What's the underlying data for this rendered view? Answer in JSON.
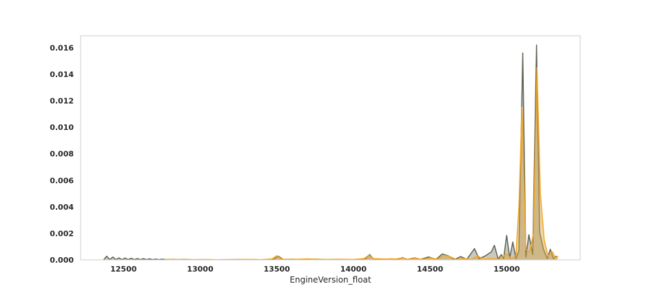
{
  "chart_data": {
    "type": "area",
    "title": "",
    "xlabel": "EngineVersion_float",
    "ylabel": "",
    "xlim": [
      12220,
      15480
    ],
    "ylim": [
      0,
      0.0169
    ],
    "x_ticks": [
      12500,
      13000,
      13500,
      14000,
      14500,
      15000
    ],
    "x_tick_labels": [
      "12500",
      "13000",
      "13500",
      "14000",
      "14500",
      "15000"
    ],
    "y_ticks": [
      0,
      0.002,
      0.004,
      0.006,
      0.008,
      0.01,
      0.012,
      0.014,
      0.016
    ],
    "y_tick_labels": [
      "0.000",
      "0.002",
      "0.004",
      "0.006",
      "0.008",
      "0.010",
      "0.012",
      "0.014",
      "0.016"
    ],
    "grid": false,
    "legend": "none",
    "series": [
      {
        "color": "#5f6352",
        "fill": "#5f6352",
        "fill_opacity": 0.35,
        "points": [
          [
            12370,
            0.0
          ],
          [
            12390,
            0.00028
          ],
          [
            12410,
            2e-05
          ],
          [
            12430,
            0.00022
          ],
          [
            12450,
            2e-05
          ],
          [
            12470,
            0.00015
          ],
          [
            12490,
            2e-05
          ],
          [
            12510,
            0.00014
          ],
          [
            12530,
            2e-05
          ],
          [
            12550,
            0.00012
          ],
          [
            12570,
            2e-05
          ],
          [
            12590,
            0.0001
          ],
          [
            12610,
            2e-05
          ],
          [
            12630,
            9e-05
          ],
          [
            12650,
            2e-05
          ],
          [
            12670,
            8e-05
          ],
          [
            12690,
            2e-05
          ],
          [
            12710,
            6e-05
          ],
          [
            12730,
            2e-05
          ],
          [
            12750,
            5e-05
          ],
          [
            12780,
            2e-05
          ],
          [
            12820,
            4e-05
          ],
          [
            12860,
            2e-05
          ],
          [
            12900,
            4e-05
          ],
          [
            12950,
            1e-05
          ],
          [
            13000,
            2e-05
          ],
          [
            13100,
            1e-05
          ],
          [
            13200,
            2e-05
          ],
          [
            13300,
            3e-05
          ],
          [
            13400,
            1e-05
          ],
          [
            13480,
            5e-05
          ],
          [
            13510,
            0.00028
          ],
          [
            13540,
            4e-05
          ],
          [
            13600,
            5e-05
          ],
          [
            13680,
            2e-05
          ],
          [
            13750,
            6e-05
          ],
          [
            13850,
            2e-05
          ],
          [
            13950,
            3e-05
          ],
          [
            14050,
            3e-05
          ],
          [
            14080,
            0.0001
          ],
          [
            14105,
            0.0004
          ],
          [
            14130,
            8e-05
          ],
          [
            14200,
            5e-05
          ],
          [
            14250,
            8e-05
          ],
          [
            14290,
            4e-05
          ],
          [
            14320,
            0.00018
          ],
          [
            14350,
            3e-05
          ],
          [
            14400,
            0.00015
          ],
          [
            14440,
            4e-05
          ],
          [
            14490,
            0.00022
          ],
          [
            14540,
            4e-05
          ],
          [
            14580,
            0.00045
          ],
          [
            14620,
            0.0003
          ],
          [
            14660,
            3e-05
          ],
          [
            14700,
            0.00025
          ],
          [
            14740,
            4e-05
          ],
          [
            14790,
            0.00085
          ],
          [
            14820,
            8e-05
          ],
          [
            14860,
            0.0003
          ],
          [
            14900,
            0.0006
          ],
          [
            14920,
            0.0011
          ],
          [
            14945,
            5e-05
          ],
          [
            14965,
            0.0004
          ],
          [
            14980,
            0.0001
          ],
          [
            15000,
            0.00185
          ],
          [
            15020,
            0.00015
          ],
          [
            15040,
            0.00135
          ],
          [
            15060,
            0.0001
          ],
          [
            15080,
            0.0007
          ],
          [
            15105,
            0.0156
          ],
          [
            15125,
            0.0002
          ],
          [
            15145,
            0.0019
          ],
          [
            15170,
            0.0004
          ],
          [
            15195,
            0.0162
          ],
          [
            15215,
            0.0021
          ],
          [
            15240,
            0.0008
          ],
          [
            15265,
            0.0001
          ],
          [
            15285,
            0.0008
          ],
          [
            15305,
            0.0001
          ],
          [
            15325,
            0.0003
          ]
        ]
      },
      {
        "color": "#f5a623",
        "fill": "#d9a441",
        "fill_opacity": 0.45,
        "points": [
          [
            12770,
            0.0
          ],
          [
            12790,
            5e-05
          ],
          [
            12820,
            2e-05
          ],
          [
            12850,
            4e-05
          ],
          [
            12880,
            2e-05
          ],
          [
            12920,
            3e-05
          ],
          [
            12960,
            2e-05
          ],
          [
            13000,
            2e-05
          ],
          [
            13050,
            3e-05
          ],
          [
            13100,
            1e-05
          ],
          [
            13200,
            2e-05
          ],
          [
            13300,
            4e-05
          ],
          [
            13400,
            2e-05
          ],
          [
            13470,
            8e-05
          ],
          [
            13500,
            0.00032
          ],
          [
            13530,
            6e-05
          ],
          [
            13600,
            4e-05
          ],
          [
            13700,
            8e-05
          ],
          [
            13800,
            3e-05
          ],
          [
            13900,
            5e-05
          ],
          [
            14000,
            4e-05
          ],
          [
            14070,
            0.0001
          ],
          [
            14100,
            0.00035
          ],
          [
            14130,
            0.0001
          ],
          [
            14200,
            7e-05
          ],
          [
            14280,
            8e-05
          ],
          [
            14320,
            0.00015
          ],
          [
            14360,
            4e-05
          ],
          [
            14400,
            0.00012
          ],
          [
            14450,
            4e-05
          ],
          [
            14500,
            0.00015
          ],
          [
            14550,
            5e-05
          ],
          [
            14590,
            0.00035
          ],
          [
            14630,
            0.00025
          ],
          [
            14670,
            4e-05
          ],
          [
            14720,
            0.0001
          ],
          [
            14770,
            4e-05
          ],
          [
            14810,
            0.0003
          ],
          [
            14850,
            5e-05
          ],
          [
            14900,
            0.0001
          ],
          [
            14950,
            5e-05
          ],
          [
            15000,
            0.00045
          ],
          [
            15030,
            0.0001
          ],
          [
            15060,
            0.0003
          ],
          [
            15080,
            0.004
          ],
          [
            15100,
            0.0115
          ],
          [
            15125,
            0.0008
          ],
          [
            15150,
            0.0006
          ],
          [
            15175,
            0.002
          ],
          [
            15198,
            0.0145
          ],
          [
            15220,
            0.005
          ],
          [
            15245,
            0.0015
          ],
          [
            15270,
            0.0003
          ],
          [
            15300,
            0.0006
          ],
          [
            15320,
            5e-05
          ],
          [
            15335,
            0.0003
          ]
        ]
      }
    ]
  }
}
